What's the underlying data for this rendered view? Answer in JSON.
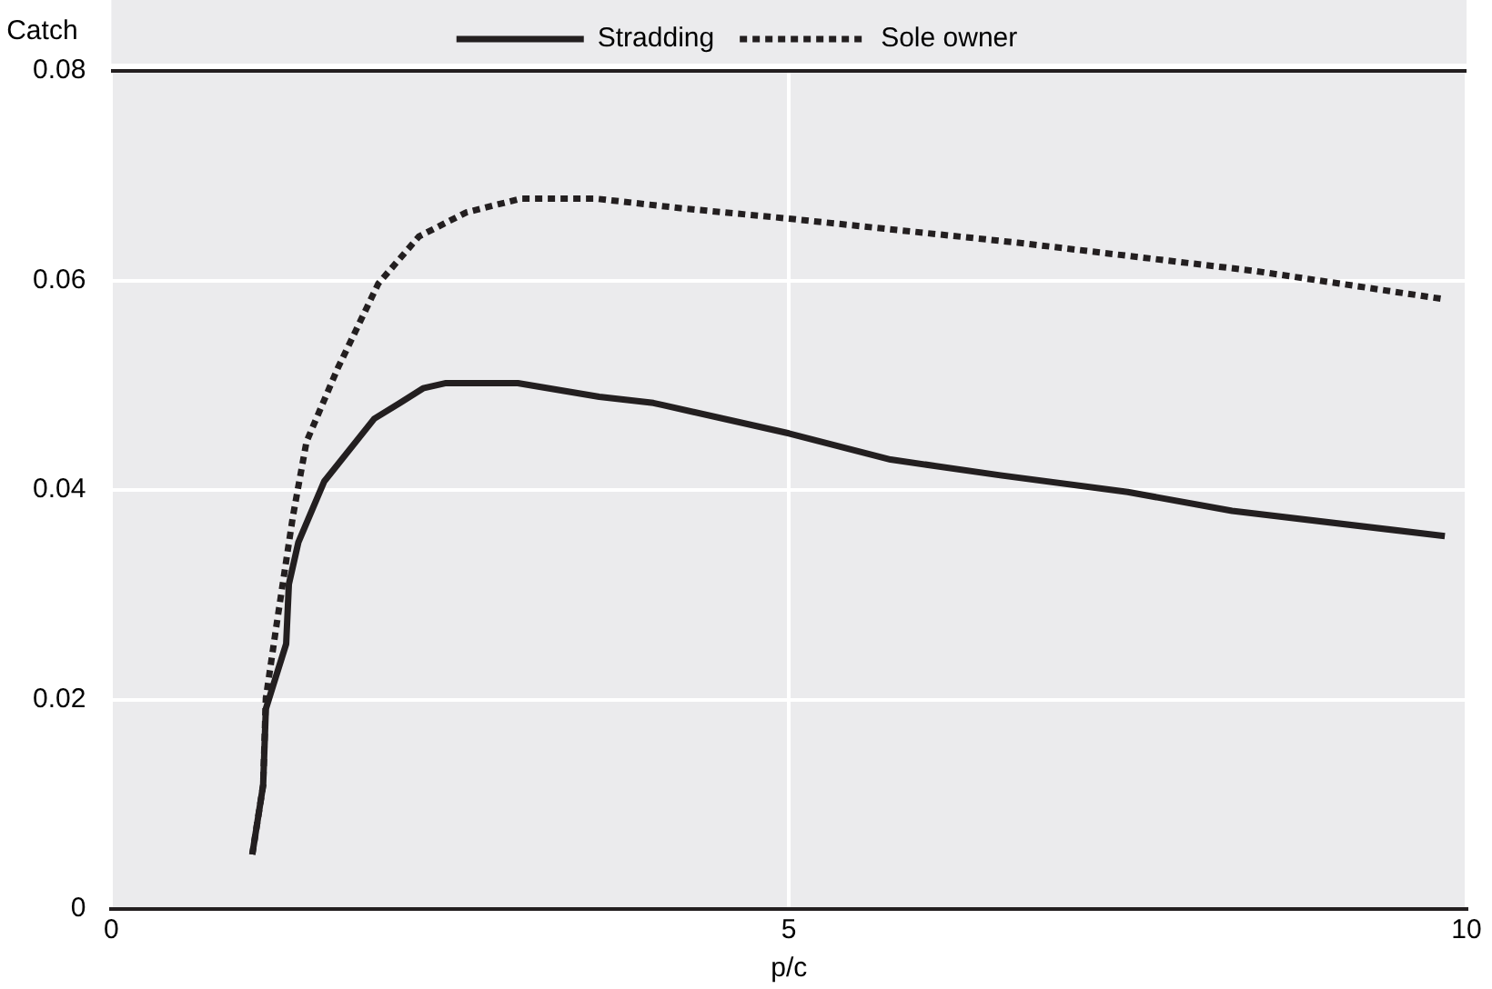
{
  "chart_data": {
    "type": "line",
    "xlabel": "p/c",
    "ylabel": "Catch",
    "xlim": [
      0,
      10
    ],
    "ylim": [
      0,
      0.08
    ],
    "xticks": [
      0,
      5,
      10
    ],
    "yticks": [
      0,
      0.02,
      0.04,
      0.06,
      0.08
    ],
    "grid": true,
    "legend": "top",
    "marker": "none",
    "series": [
      {
        "name": "Stradding",
        "color": "#231f20",
        "line_style": "solid",
        "x": [
          1.04,
          1.12,
          1.14,
          1.29,
          1.31,
          1.38,
          1.57,
          1.94,
          2.13,
          2.3,
          2.47,
          3,
          3.6,
          4,
          4.07,
          5,
          5.75,
          6.56,
          7.5,
          8.27,
          9.84
        ],
        "values": [
          0.0052,
          0.0118,
          0.0191,
          0.0253,
          0.031,
          0.035,
          0.0408,
          0.0468,
          0.0483,
          0.0497,
          0.0502,
          0.0502,
          0.0489,
          0.0483,
          0.0481,
          0.0454,
          0.0429,
          0.0414,
          0.0398,
          0.038,
          0.0356
        ]
      },
      {
        "name": "Sole owner",
        "color": "#231f20",
        "line_style": "dotted",
        "x": [
          1.04,
          1.12,
          1.14,
          1.22,
          1.34,
          1.44,
          1.67,
          1.97,
          2.27,
          2.62,
          3.02,
          3.58,
          4.2,
          5,
          6.69,
          8.44,
          9.84
        ],
        "values": [
          0.0052,
          0.0118,
          0.0201,
          0.0272,
          0.0375,
          0.0446,
          0.0516,
          0.0597,
          0.0642,
          0.0665,
          0.0678,
          0.0678,
          0.0669,
          0.0659,
          0.0636,
          0.0609,
          0.0582
        ]
      }
    ]
  }
}
